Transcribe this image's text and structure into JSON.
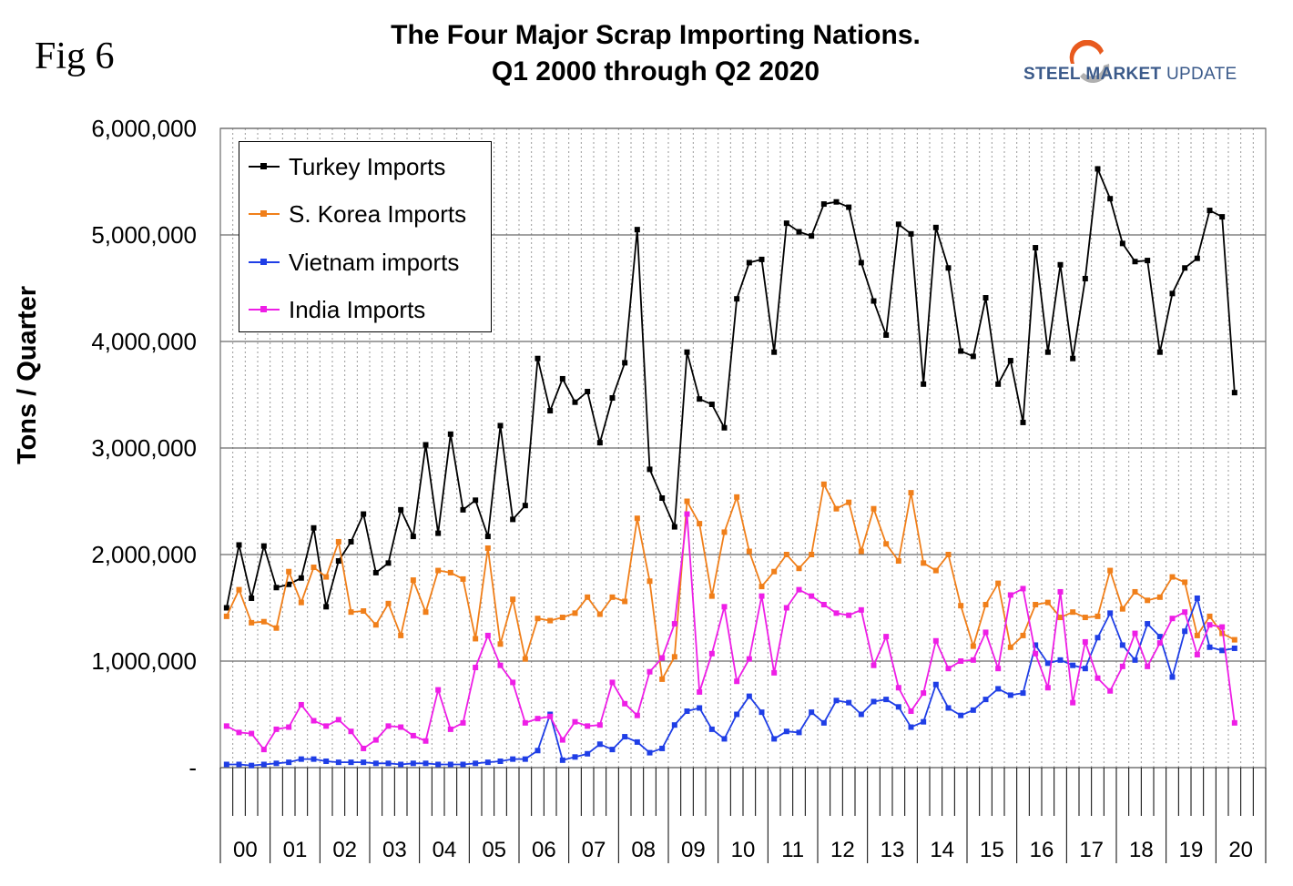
{
  "fig_label": "Fig 6",
  "logo": {
    "word1": "STEEL",
    "word2": "MARKET",
    "word3": "UPDATE",
    "color": "#3b5a8a",
    "accent": "#e85a1e"
  },
  "chart_data": {
    "type": "line",
    "title": "The Four Major Scrap Importing Nations.",
    "subtitle": "Q1 2000 through Q2 2020",
    "ylabel": "Tons / Quarter",
    "xlabel": "",
    "ylim": [
      0,
      6000000
    ],
    "yticks": [
      0,
      1000000,
      2000000,
      3000000,
      4000000,
      5000000,
      6000000
    ],
    "ytick_labels": [
      "-",
      "1,000,000",
      "2,000,000",
      "3,000,000",
      "4,000,000",
      "5,000,000",
      "6,000,000"
    ],
    "year_labels": [
      "00",
      "01",
      "02",
      "03",
      "04",
      "05",
      "06",
      "07",
      "08",
      "09",
      "10",
      "11",
      "12",
      "13",
      "14",
      "15",
      "16",
      "17",
      "18",
      "19",
      "20"
    ],
    "grid": "horizontal major, vertical dotted by quarter",
    "legend_position": "top-left",
    "series": [
      {
        "name": "Turkey Imports",
        "color": "#000000",
        "values": [
          1500000,
          2090000,
          1590000,
          2080000,
          1690000,
          1720000,
          1780000,
          2250000,
          1510000,
          1940000,
          2120000,
          2380000,
          1830000,
          1920000,
          2420000,
          2170000,
          3030000,
          2200000,
          3130000,
          2420000,
          2510000,
          2170000,
          3210000,
          2330000,
          2460000,
          3840000,
          3350000,
          3650000,
          3430000,
          3530000,
          3050000,
          3470000,
          3800000,
          5050000,
          2800000,
          2530000,
          2260000,
          3900000,
          3460000,
          3410000,
          3190000,
          4400000,
          4740000,
          4770000,
          3900000,
          5110000,
          5030000,
          4990000,
          5290000,
          5310000,
          5260000,
          4740000,
          4380000,
          4060000,
          5100000,
          5010000,
          3600000,
          5070000,
          4690000,
          3910000,
          3860000,
          4410000,
          3600000,
          3820000,
          3240000,
          4880000,
          3900000,
          4720000,
          3840000,
          4590000,
          5620000,
          5340000,
          4920000,
          4750000,
          4760000,
          3900000,
          4450000,
          4690000,
          4780000,
          5230000,
          5170000,
          3520000
        ]
      },
      {
        "name": "S. Korea Imports",
        "color": "#f07f1a",
        "values": [
          1420000,
          1670000,
          1360000,
          1370000,
          1310000,
          1840000,
          1550000,
          1880000,
          1790000,
          2120000,
          1460000,
          1470000,
          1340000,
          1540000,
          1240000,
          1760000,
          1460000,
          1850000,
          1830000,
          1770000,
          1210000,
          2060000,
          1160000,
          1580000,
          1020000,
          1400000,
          1380000,
          1410000,
          1450000,
          1600000,
          1440000,
          1600000,
          1560000,
          2340000,
          1750000,
          830000,
          1040000,
          2500000,
          2290000,
          1610000,
          2210000,
          2540000,
          2030000,
          1700000,
          1840000,
          2000000,
          1870000,
          2000000,
          2660000,
          2430000,
          2490000,
          2030000,
          2430000,
          2100000,
          1940000,
          2580000,
          1920000,
          1850000,
          2000000,
          1520000,
          1140000,
          1530000,
          1730000,
          1130000,
          1240000,
          1530000,
          1550000,
          1410000,
          1460000,
          1410000,
          1420000,
          1850000,
          1490000,
          1650000,
          1570000,
          1600000,
          1790000,
          1740000,
          1240000,
          1420000,
          1260000,
          1200000
        ]
      },
      {
        "name": "Vietnam imports",
        "color": "#1f3ee6",
        "values": [
          30000,
          30000,
          20000,
          30000,
          40000,
          50000,
          80000,
          80000,
          60000,
          50000,
          50000,
          50000,
          40000,
          40000,
          30000,
          40000,
          40000,
          30000,
          30000,
          30000,
          40000,
          50000,
          60000,
          80000,
          80000,
          160000,
          500000,
          70000,
          100000,
          130000,
          220000,
          170000,
          290000,
          240000,
          140000,
          180000,
          400000,
          530000,
          560000,
          360000,
          270000,
          500000,
          670000,
          520000,
          270000,
          340000,
          330000,
          520000,
          420000,
          630000,
          610000,
          500000,
          620000,
          640000,
          570000,
          380000,
          430000,
          780000,
          560000,
          490000,
          540000,
          640000,
          740000,
          680000,
          700000,
          1150000,
          980000,
          1010000,
          960000,
          930000,
          1220000,
          1450000,
          1150000,
          1010000,
          1350000,
          1230000,
          850000,
          1280000,
          1590000,
          1130000,
          1100000,
          1120000
        ]
      },
      {
        "name": "India Imports",
        "color": "#ee1ee6",
        "values": [
          390000,
          330000,
          320000,
          170000,
          360000,
          380000,
          590000,
          440000,
          390000,
          450000,
          340000,
          180000,
          260000,
          390000,
          380000,
          300000,
          250000,
          730000,
          360000,
          420000,
          940000,
          1240000,
          960000,
          800000,
          420000,
          460000,
          480000,
          260000,
          430000,
          390000,
          400000,
          800000,
          600000,
          490000,
          900000,
          1030000,
          1350000,
          2380000,
          710000,
          1070000,
          1510000,
          810000,
          1020000,
          1610000,
          890000,
          1500000,
          1670000,
          1610000,
          1530000,
          1450000,
          1430000,
          1480000,
          960000,
          1230000,
          750000,
          530000,
          700000,
          1190000,
          930000,
          1000000,
          1010000,
          1270000,
          930000,
          1620000,
          1680000,
          1070000,
          750000,
          1650000,
          610000,
          1180000,
          840000,
          720000,
          950000,
          1260000,
          950000,
          1170000,
          1400000,
          1460000,
          1060000,
          1340000,
          1320000,
          420000
        ]
      }
    ]
  }
}
